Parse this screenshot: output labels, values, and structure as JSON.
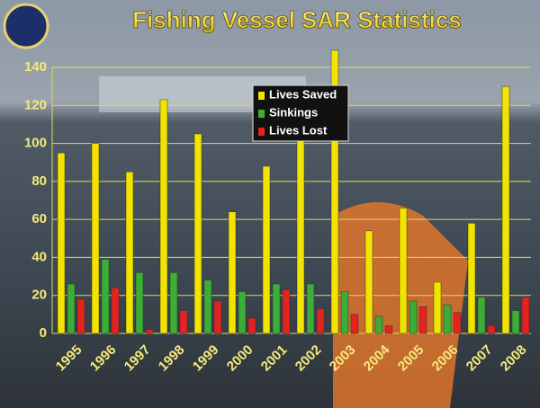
{
  "chart_data": {
    "type": "bar",
    "title": "Fishing Vessel SAR Statistics",
    "categories": [
      "1995",
      "1996",
      "1997",
      "1998",
      "1999",
      "2000",
      "2001",
      "2002",
      "2003",
      "2004",
      "2005",
      "2006",
      "2007",
      "2008"
    ],
    "series": [
      {
        "name": "Lives Saved",
        "color": "#f2e400",
        "values": [
          95,
          100,
          85,
          123,
          105,
          64,
          88,
          102,
          149,
          54,
          66,
          27,
          58,
          130
        ]
      },
      {
        "name": "Sinkings",
        "color": "#3aae35",
        "values": [
          26,
          39,
          32,
          32,
          28,
          22,
          26,
          26,
          22,
          9,
          17,
          15,
          19,
          12
        ]
      },
      {
        "name": "Lives Lost",
        "color": "#e4231f",
        "values": [
          18,
          24,
          2,
          12,
          17,
          8,
          23,
          13,
          10,
          4,
          14,
          11,
          4,
          19
        ]
      }
    ],
    "ylim": [
      0,
      140
    ],
    "yticks": [
      0,
      20,
      40,
      60,
      80,
      100,
      120,
      140
    ],
    "grid": true,
    "legend": "top"
  }
}
